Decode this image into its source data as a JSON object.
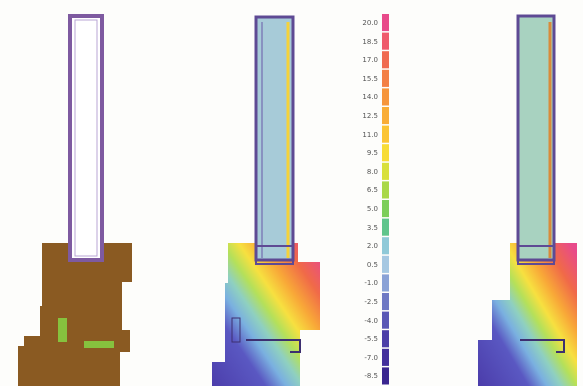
{
  "figure": {
    "panels": [
      {
        "id": "materials",
        "view": "material zones"
      },
      {
        "id": "thermal-a",
        "view": "temperature field"
      },
      {
        "id": "thermal-b",
        "view": "temperature field"
      }
    ],
    "colors": {
      "brick": "#8a5a22",
      "mortar_green": "#86c23e",
      "frame_violet": "#7e5aa0",
      "window_pane": "#a7cbd8",
      "pane_green": "#a8d2c0"
    }
  },
  "color_scale": {
    "labels": [
      "20.0",
      "18.5",
      "17.0",
      "15.5",
      "14.0",
      "12.5",
      "11.0",
      "9.5",
      "8.0",
      "6.5",
      "5.0",
      "3.5",
      "2.0",
      "0.5",
      "-1.0",
      "-2.5",
      "-4.0",
      "-5.5",
      "-7.0",
      "-8.5"
    ],
    "colors": [
      "#e84a8a",
      "#ef5a6c",
      "#f06a50",
      "#f38045",
      "#f6963c",
      "#f9ad37",
      "#fbc434",
      "#f7dc36",
      "#d8e03c",
      "#a9d848",
      "#7cce5a",
      "#5fc58c",
      "#8fc9d8",
      "#a6c8e2",
      "#8aa2d6",
      "#6f79c4",
      "#5a58b6",
      "#4c3ea8",
      "#43309c",
      "#3a2690"
    ]
  }
}
